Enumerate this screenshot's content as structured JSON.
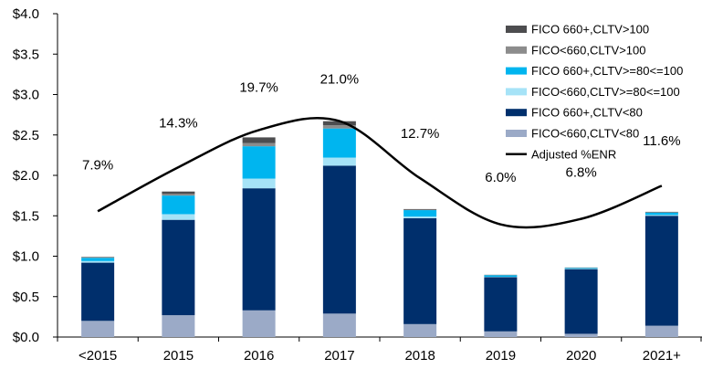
{
  "chart_data": {
    "type": "bar",
    "stacked": true,
    "title": "",
    "xlabel": "",
    "ylabel": "",
    "ylim": [
      0,
      4.0
    ],
    "ytick_values": [
      0,
      0.5,
      1.0,
      1.5,
      2.0,
      2.5,
      3.0,
      3.5,
      4.0
    ],
    "ytick_labels": [
      "$0.0",
      "$0.5",
      "$1.0",
      "$1.5",
      "$2.0",
      "$2.5",
      "$3.0",
      "$3.5",
      "$4.0"
    ],
    "categories": [
      "<2015",
      "2015",
      "2016",
      "2017",
      "2018",
      "2019",
      "2020",
      "2021+"
    ],
    "series": [
      {
        "name": "FICO<660,CLTV<80",
        "color": "#9BAAC7",
        "values": [
          0.2,
          0.27,
          0.33,
          0.29,
          0.16,
          0.07,
          0.04,
          0.14
        ]
      },
      {
        "name": "FICO 660+,CLTV<80",
        "color": "#002F6C",
        "values": [
          0.72,
          1.18,
          1.51,
          1.83,
          1.31,
          0.67,
          0.8,
          1.36
        ]
      },
      {
        "name": "FICO<660,CLTV>=80<=100",
        "color": "#A6E3F7",
        "values": [
          0.02,
          0.07,
          0.12,
          0.1,
          0.02,
          0.005,
          0.005,
          0.01
        ]
      },
      {
        "name": "FICO 660+,CLTV>=80<=100",
        "color": "#00B5EF",
        "values": [
          0.04,
          0.23,
          0.4,
          0.36,
          0.08,
          0.02,
          0.01,
          0.03
        ]
      },
      {
        "name": "FICO<660,CLTV>100",
        "color": "#8C8C8C",
        "values": [
          0.003,
          0.02,
          0.04,
          0.04,
          0.005,
          0.002,
          0.002,
          0.003
        ]
      },
      {
        "name": "FICO 660+,CLTV>100",
        "color": "#4D4D4F",
        "values": [
          0.007,
          0.03,
          0.07,
          0.05,
          0.008,
          0.003,
          0.003,
          0.006
        ]
      }
    ],
    "line": {
      "name": "Adjusted %ENR",
      "color": "#000000",
      "values": [
        7.9,
        14.3,
        19.7,
        21.0,
        12.7,
        6.0,
        6.8,
        11.6
      ],
      "labels": [
        "7.9%",
        "14.3%",
        "19.7%",
        "21.0%",
        "12.7%",
        "6.0%",
        "6.8%",
        "11.6%"
      ]
    },
    "legend_order": [
      "FICO 660+,CLTV>100",
      "FICO<660,CLTV>100",
      "FICO 660+,CLTV>=80<=100",
      "FICO<660,CLTV>=80<=100",
      "FICO 660+,CLTV<80",
      "FICO<660,CLTV<80",
      "Adjusted %ENR"
    ],
    "legend_position": "top-right",
    "grid": false
  }
}
